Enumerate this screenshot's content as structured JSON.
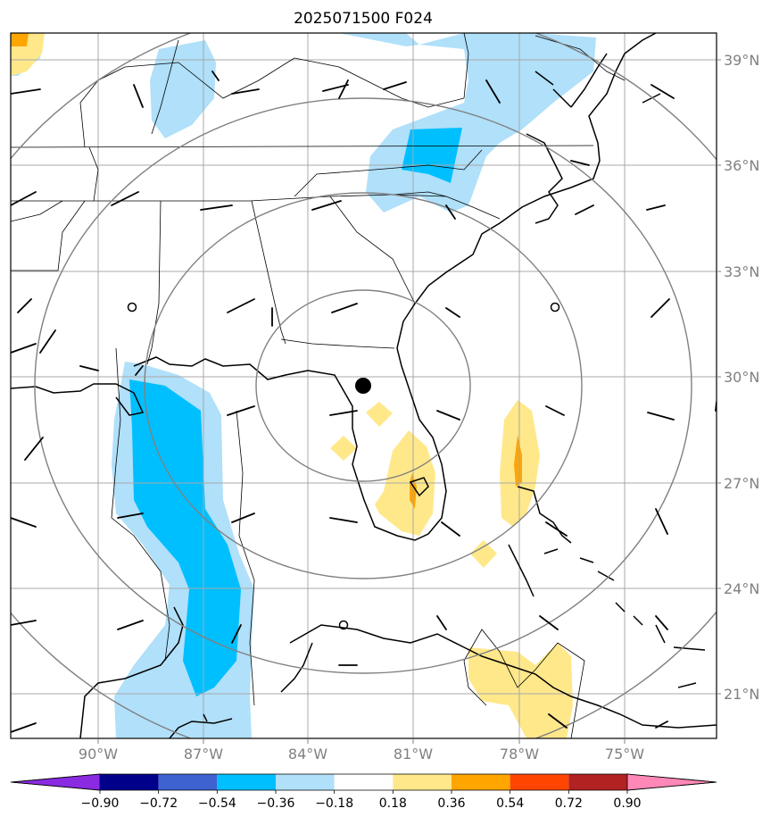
{
  "title": "2025071500 F024",
  "lon_labels": [
    "90°W",
    "87°W",
    "84°W",
    "81°W",
    "78°W",
    "75°W"
  ],
  "lat_labels": [
    "39°N",
    "36°N",
    "33°N",
    "30°N",
    "27°N",
    "24°N",
    "21°N"
  ],
  "colorbar": {
    "ticks": [
      "−0.90",
      "−0.72",
      "−0.54",
      "−0.36",
      "−0.18",
      "0.18",
      "0.36",
      "0.54",
      "0.72",
      "0.90"
    ],
    "colors": [
      "#8a2be2",
      "#00008b",
      "#3e62cf",
      "#00bfff",
      "#b0e0fa",
      "#ffffff",
      "#ffe88a",
      "#ffa500",
      "#ff4500",
      "#b22222",
      "#ff88b8"
    ]
  },
  "field_colors": {
    "light_blue": "#b0e0fa",
    "blue": "#00bfff",
    "light_yellow": "#ffe88a",
    "orange": "#ffa500"
  },
  "center_marker": "black-dot",
  "extent": {
    "lon_min": -92.5,
    "lon_max": -72.5,
    "lat_min": 20,
    "lat_max": 40
  }
}
